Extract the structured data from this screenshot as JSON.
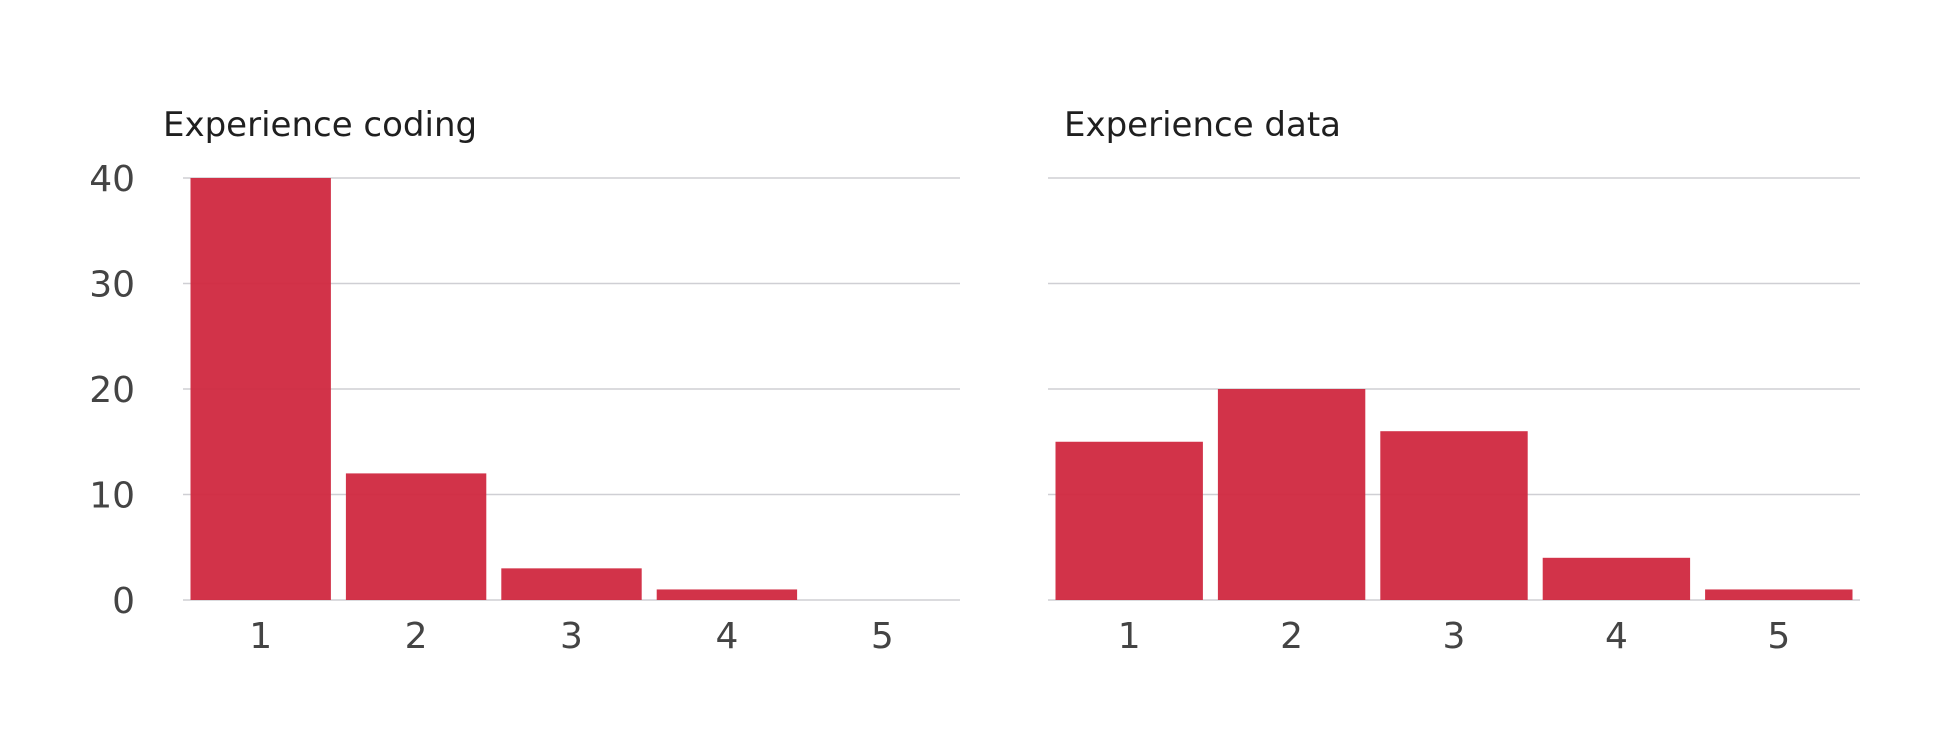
{
  "chart_data": [
    {
      "type": "bar",
      "title": "Experience coding",
      "categories": [
        "1",
        "2",
        "3",
        "4",
        "5"
      ],
      "values": [
        40,
        12,
        3,
        1,
        0
      ],
      "ylim": [
        0,
        40
      ],
      "yticks": [
        "0",
        "10",
        "20",
        "30",
        "40"
      ],
      "show_y_axis_labels": true,
      "grid": true,
      "xlabel": "",
      "ylabel": ""
    },
    {
      "type": "bar",
      "title": "Experience data",
      "categories": [
        "1",
        "2",
        "3",
        "4",
        "5"
      ],
      "values": [
        15,
        20,
        16,
        4,
        1
      ],
      "ylim": [
        0,
        40
      ],
      "yticks": [
        "0",
        "10",
        "20",
        "30",
        "40"
      ],
      "show_y_axis_labels": false,
      "grid": true,
      "xlabel": "",
      "ylabel": ""
    }
  ],
  "colors": {
    "bar": "#d0283f",
    "grid": "#cfcfd4",
    "text": "#444444",
    "title": "#1f1f1f"
  }
}
